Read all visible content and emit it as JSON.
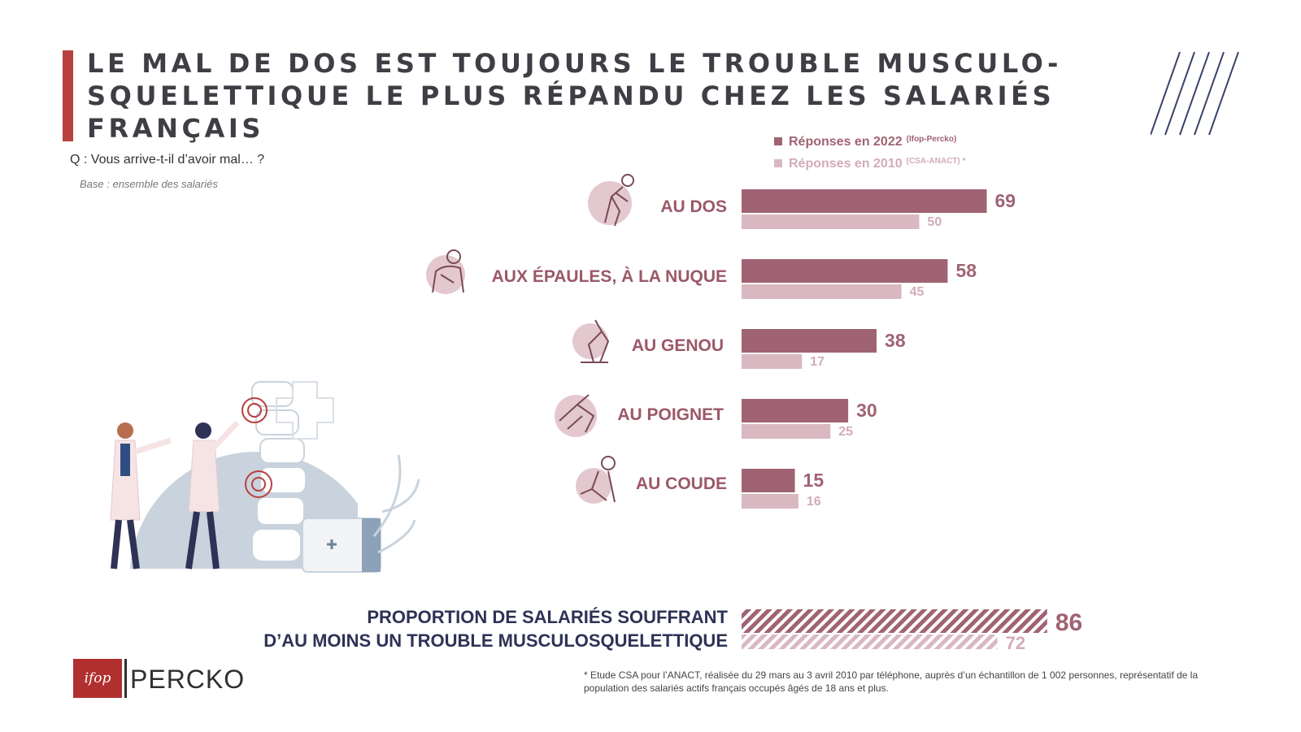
{
  "header": {
    "title": "LE MAL DE DOS EST TOUJOURS LE TROUBLE MUSCULO-SQUELETTIQUE LE PLUS RÉPANDU CHEZ LES SALARIÉS FRANÇAIS",
    "question": "Q : Vous arrive-t-il d’avoir mal… ?",
    "base": "Base : ensemble des salariés"
  },
  "legend": {
    "items": [
      {
        "label": "Réponses en 2022",
        "source": "(Ifop-Percko)",
        "color": "#a06373"
      },
      {
        "label": "Réponses en 2010",
        "source": "(CSA-ANACT) *",
        "color": "#d9b8c1"
      }
    ]
  },
  "colors": {
    "bar_2022": "#a06373",
    "bar_2010": "#d9b8c1",
    "accent_red": "#b8403f",
    "label": "#9b5868",
    "navy": "#2e3255"
  },
  "chart_data": {
    "type": "bar",
    "orientation": "horizontal",
    "categories": [
      "AU DOS",
      "AUX ÉPAULES, À LA NUQUE",
      "AU GENOU",
      "AU POIGNET",
      "AU COUDE"
    ],
    "series": [
      {
        "name": "Réponses en 2022",
        "values": [
          69,
          58,
          38,
          30,
          15
        ]
      },
      {
        "name": "Réponses en 2010",
        "values": [
          50,
          45,
          17,
          25,
          16
        ]
      }
    ],
    "xlim": [
      0,
      100
    ],
    "grid": false,
    "legend": "top-right",
    "summary": {
      "label_line1": "PROPORTION DE SALARIÉS SOUFFRANT",
      "label_line2": "D’AU MOINS UN TROUBLE MUSCULOSQUELETTIQUE",
      "values": [
        86,
        72
      ]
    }
  },
  "icons": [
    "back-pain-icon",
    "shoulder-pain-icon",
    "knee-pain-icon",
    "wrist-pain-icon",
    "elbow-pain-icon"
  ],
  "footnote": "* Etude CSA pour l’ANACT, réalisée du 29 mars au 3 avril 2010 par téléphone, auprès d’un échantillon de 1 002 personnes, représentatif de la population des salariés actifs français occupés âgés de 18 ans et plus.",
  "logos": {
    "ifop": "ifop",
    "percko": "PERCKO"
  }
}
